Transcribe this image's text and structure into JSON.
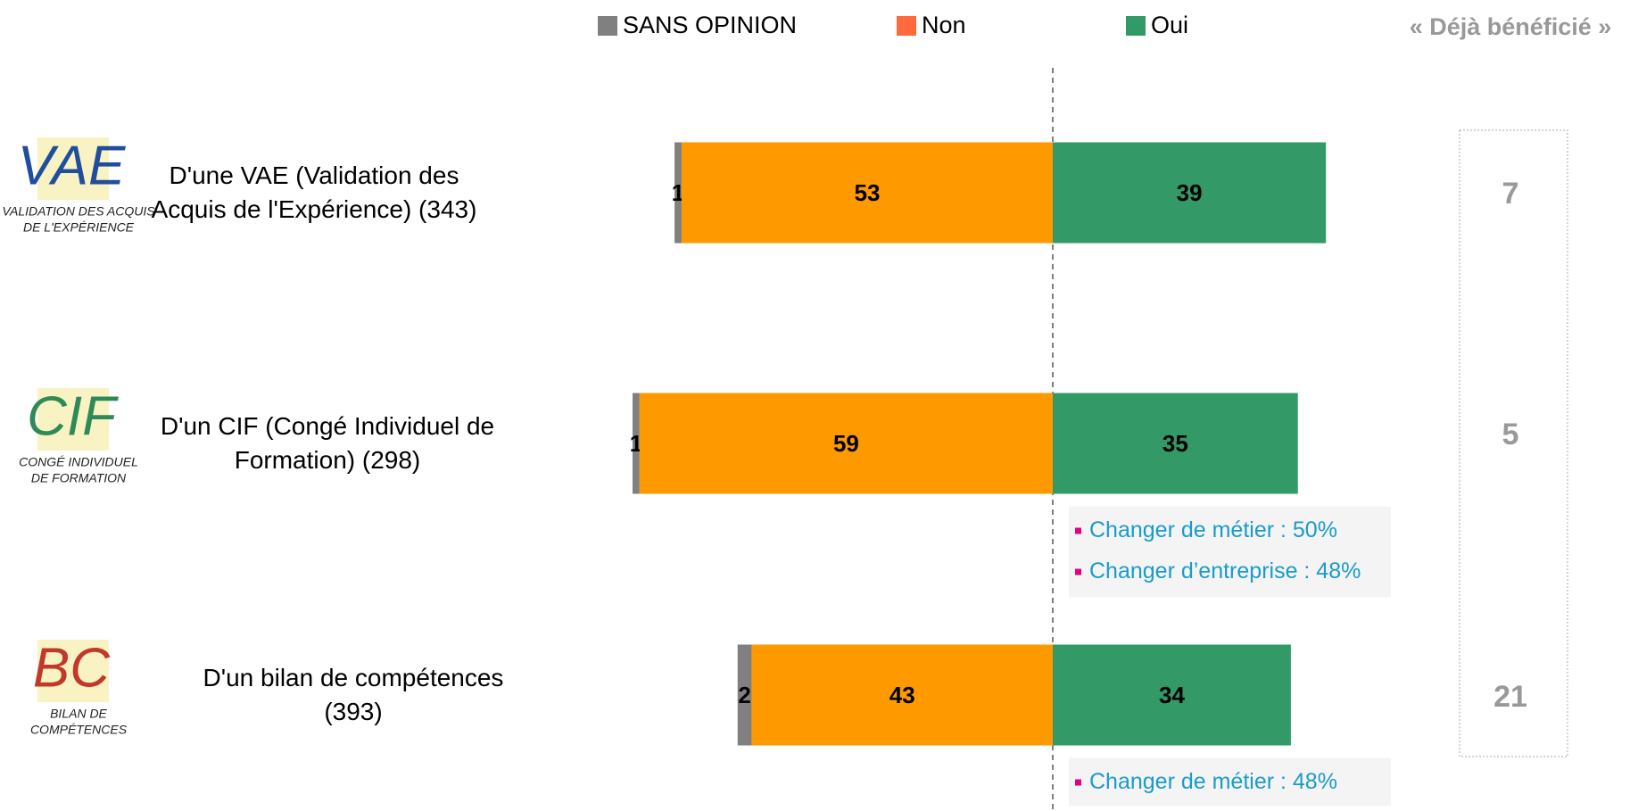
{
  "chart_data": {
    "type": "diverging_bar",
    "categories": [
      "D'une VAE (Validation des Acquis de l'Expérience) (343)",
      "D'un CIF (Congé Individuel de Formation) (298)",
      "D'un bilan de compétences (393)"
    ],
    "series": [
      {
        "name": "SANS OPINION",
        "color": "#808080",
        "values": [
          1,
          1,
          2
        ]
      },
      {
        "name": "Non",
        "color": "#ff9900",
        "legend_color": "#ff6a3d",
        "values": [
          53,
          59,
          43
        ]
      },
      {
        "name": "Oui",
        "color": "#339966",
        "values": [
          39,
          35,
          34
        ]
      }
    ],
    "extra_column": {
      "title": "« Déjà bénéficié »",
      "values": [
        7,
        5,
        21
      ]
    },
    "notes": [
      [],
      [
        "Changer de métier : 50%",
        "Changer d’entreprise : 48%"
      ],
      [
        "Changer de métier : 48%"
      ]
    ],
    "icons": [
      {
        "letters": "VAE",
        "caption": [
          "VALIDATION DES ACQUIS",
          "DE L'EXPÉRIENCE"
        ]
      },
      {
        "letters": "CIF",
        "caption": [
          "CONGÉ INDIVIDUEL",
          "DE FORMATION"
        ]
      },
      {
        "letters": "BC",
        "caption": [
          "BILAN DE",
          "COMPÉTENCES"
        ]
      }
    ]
  }
}
